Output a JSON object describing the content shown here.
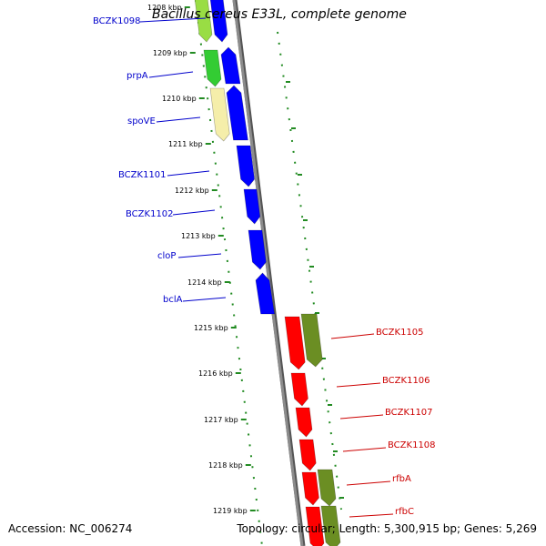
{
  "title": "Bacillus cereus E33L, complete genome",
  "footer": {
    "accession": "Accession: NC_006274",
    "topology": "Topology: circular; Length: 5,300,915 bp; Genes: 5,269"
  },
  "colors": {
    "backbone": "#8c8c8c",
    "tick": "#228b22",
    "label_left": "#0000cc",
    "label_right": "#cc0000",
    "gene_blue": "#0000ff",
    "gene_red": "#ff0000",
    "gene_green": "#33cc33",
    "gene_lightgreen": "#99dd44",
    "gene_yellow": "#f5eeaa",
    "gene_olive": "#6b8e23"
  },
  "kbp_labels": [
    "1208 kbp",
    "1209 kbp",
    "1210 kbp",
    "1211 kbp",
    "1212 kbp",
    "1213 kbp",
    "1214 kbp",
    "1215 kbp",
    "1216 kbp",
    "1217 kbp",
    "1218 kbp",
    "1219 kbp"
  ],
  "gene_labels_left": [
    "BCZK1098",
    "prpA",
    "spoVE",
    "BCZK1101",
    "BCZK1102",
    "cloP",
    "bclA"
  ],
  "gene_labels_right": [
    "BCZK1105",
    "BCZK1106",
    "BCZK1107",
    "BCZK1108",
    "rfbA",
    "rfbC"
  ]
}
